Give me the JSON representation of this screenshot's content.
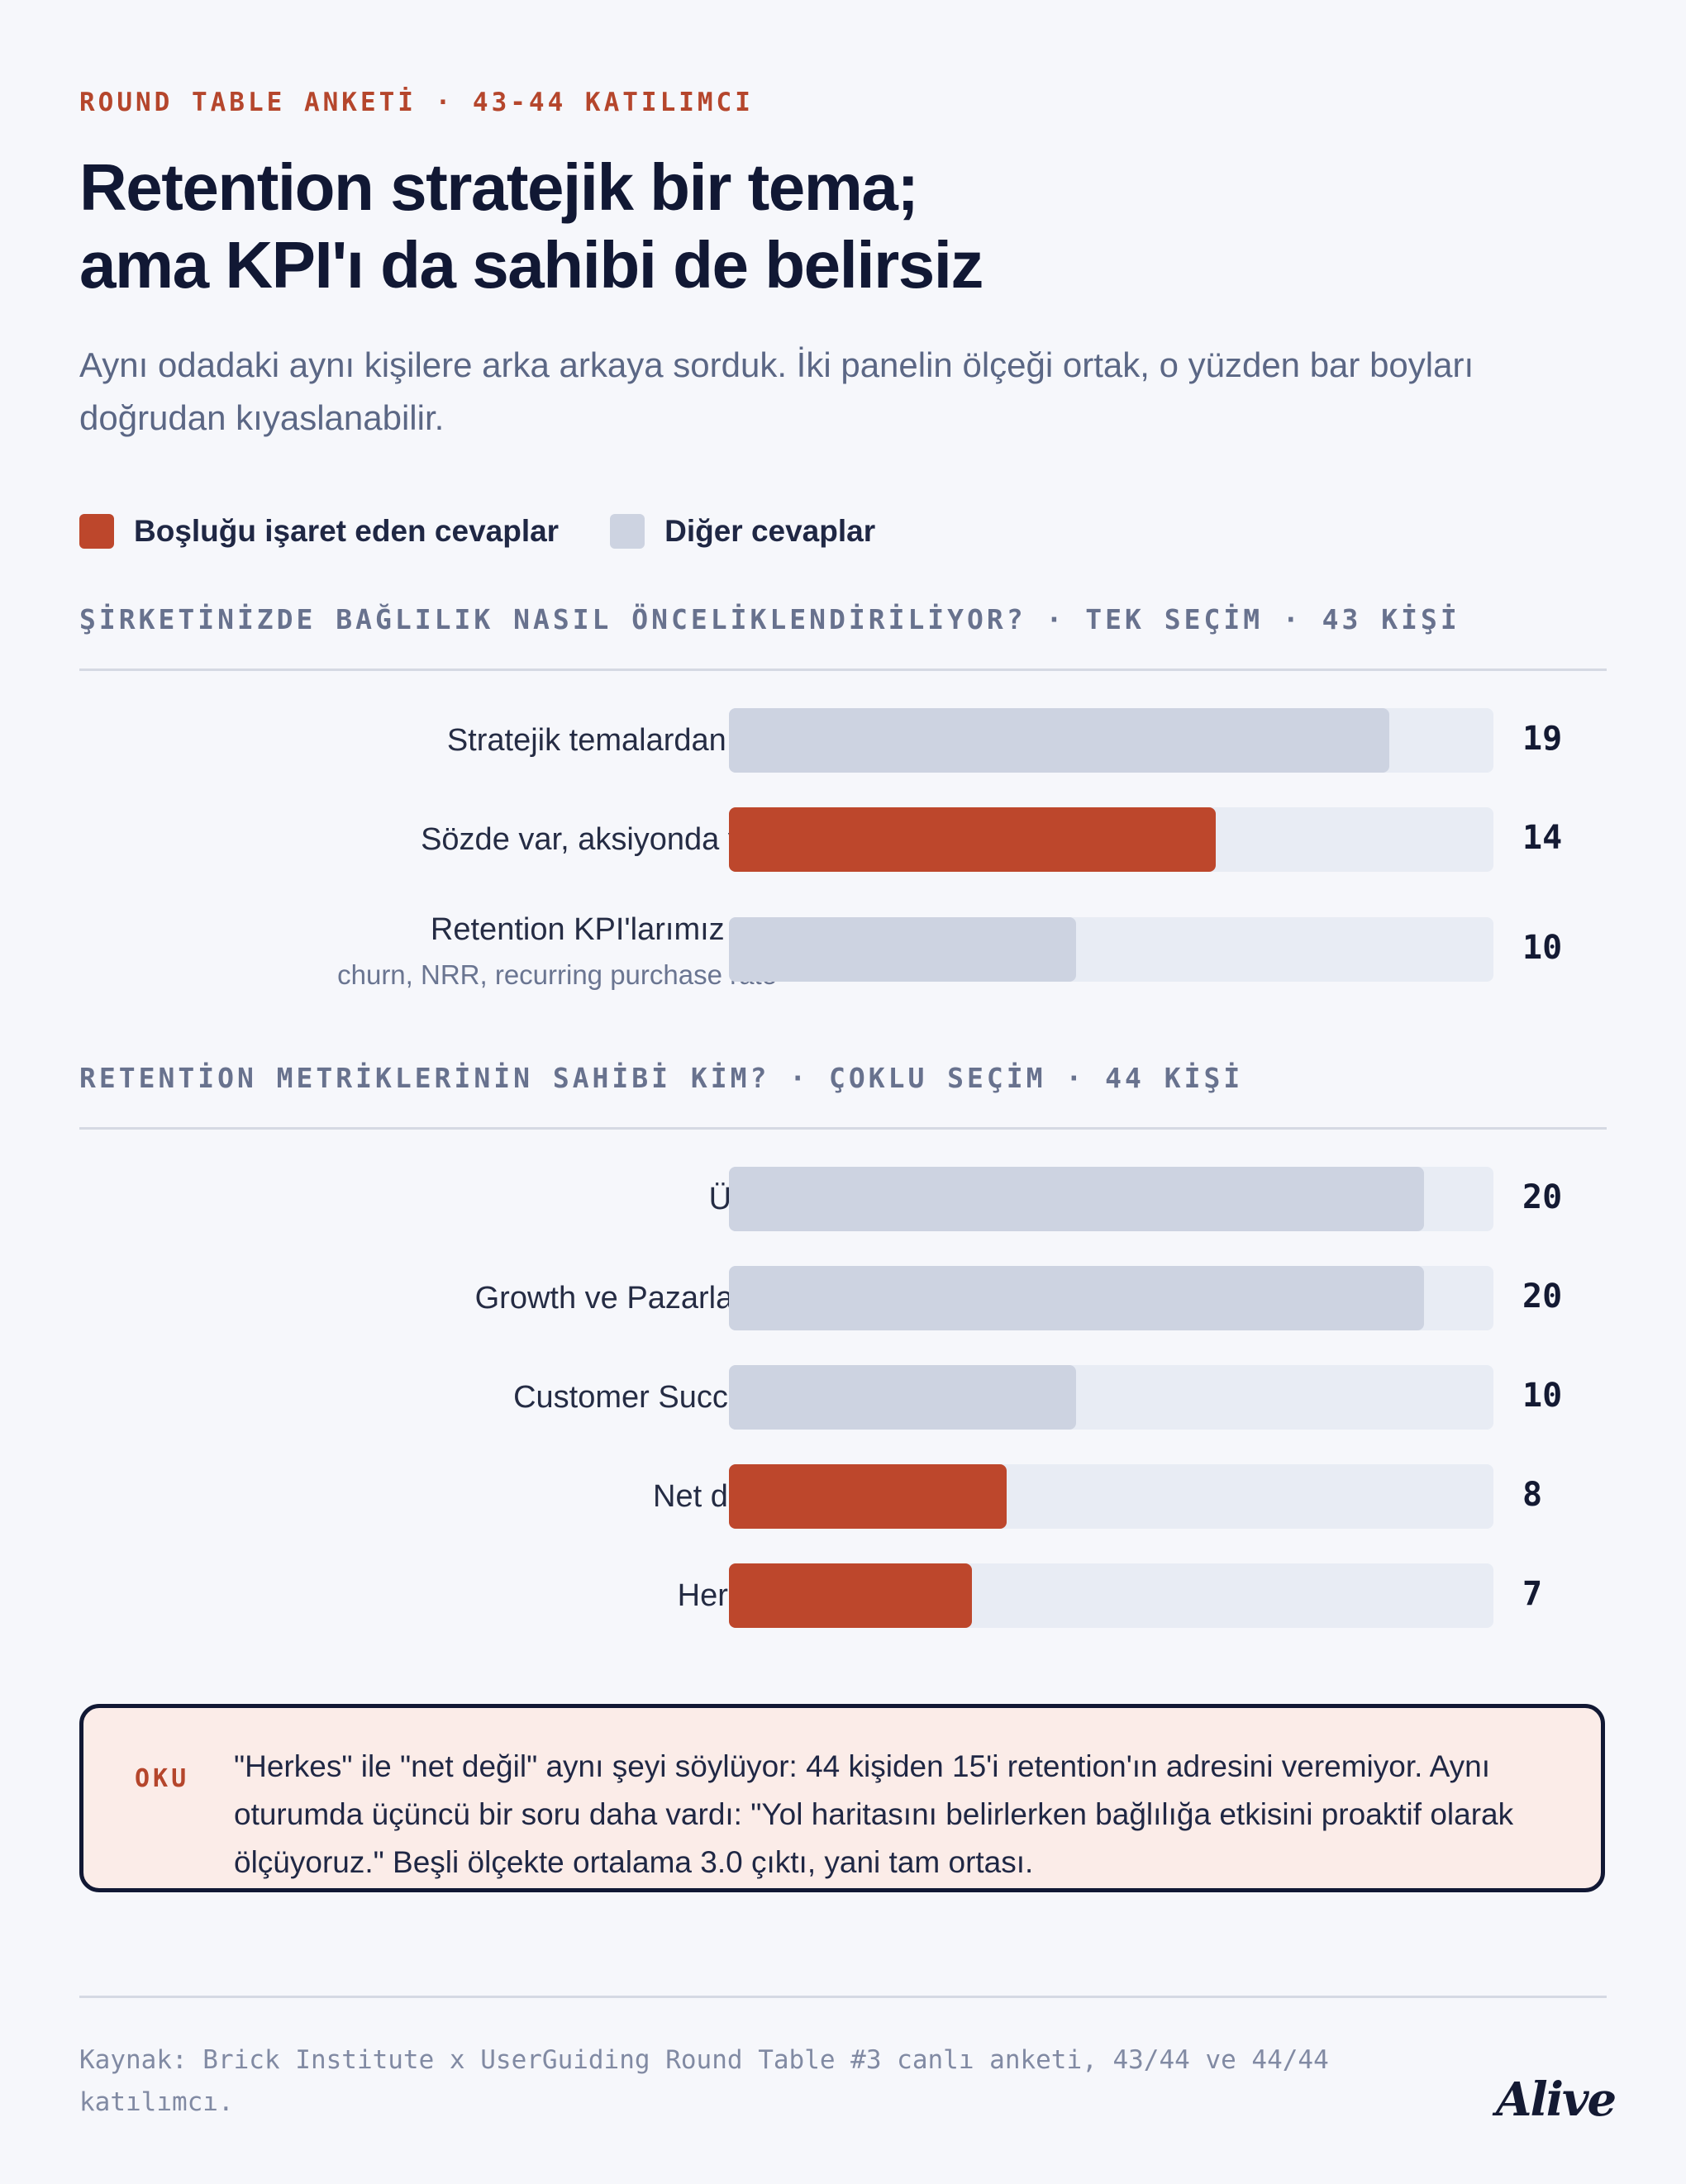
{
  "kicker": "ROUND TABLE ANKETİ · 43-44 KATILIMCI",
  "title_lines": [
    "Retention stratejik bir tema;",
    "ama KPI'ı da sahibi de belirsiz"
  ],
  "subtitle": "Aynı odadaki aynı kişilere arka arkaya sorduk. İki panelin ölçeği ortak, o yüzden bar boyları doğrudan kıyaslanabilir.",
  "legend": [
    {
      "label": "Boşluğu işaret eden cevaplar",
      "color": "#bd472c"
    },
    {
      "label": "Diğer cevaplar",
      "color": "#cdd3e1"
    }
  ],
  "chart_data": [
    {
      "type": "bar",
      "orientation": "horizontal",
      "title": "ŞİRKETİNİZDE BAĞLILIK NASIL ÖNCELİKLENDİRİLİYOR? · TEK SEÇİM · 43 KİŞİ",
      "xlim": [
        0,
        22
      ],
      "categories": [
        "Stratejik temalardan biri",
        "Sözde var, aksiyonda yok",
        "Retention KPI'larımız var"
      ],
      "sublabels": [
        "",
        "",
        "churn, NRR, recurring purchase rate"
      ],
      "values": [
        19,
        14,
        10
      ],
      "highlight": [
        false,
        true,
        false
      ]
    },
    {
      "type": "bar",
      "orientation": "horizontal",
      "title": "RETENTİON METRİKLERİNİN SAHİBİ KİM? · ÇOKLU SEÇİM · 44 KİŞİ",
      "xlim": [
        0,
        22
      ],
      "categories": [
        "Ürün",
        "Growth ve Pazarlama",
        "Customer Success",
        "Net değil",
        "Herkes"
      ],
      "sublabels": [
        "",
        "",
        "",
        "",
        ""
      ],
      "values": [
        20,
        20,
        10,
        8,
        7
      ],
      "highlight": [
        false,
        false,
        false,
        true,
        true
      ]
    }
  ],
  "colors": {
    "highlight": "#bd472c",
    "other": "#cdd3e1",
    "track": "#e8ecf4",
    "accent_text": "#b5462c"
  },
  "note": {
    "tag": "OKU",
    "text": "\"Herkes\" ile \"net değil\" aynı şeyi söylüyor: 44 kişiden 15'i retention'ın adresini veremiyor. Aynı oturumda üçüncü bir soru daha vardı: \"Yol haritasını belirlerken bağlılığa etkisini proaktif olarak ölçüyoruz.\" Beşli ölçekte ortalama 3.0 çıktı, yani tam ortası."
  },
  "source": "Kaynak: Brick Institute x UserGuiding Round Table #3 canlı anketi, 43/44 ve 44/44 katılımcı.",
  "logo": "Alive"
}
